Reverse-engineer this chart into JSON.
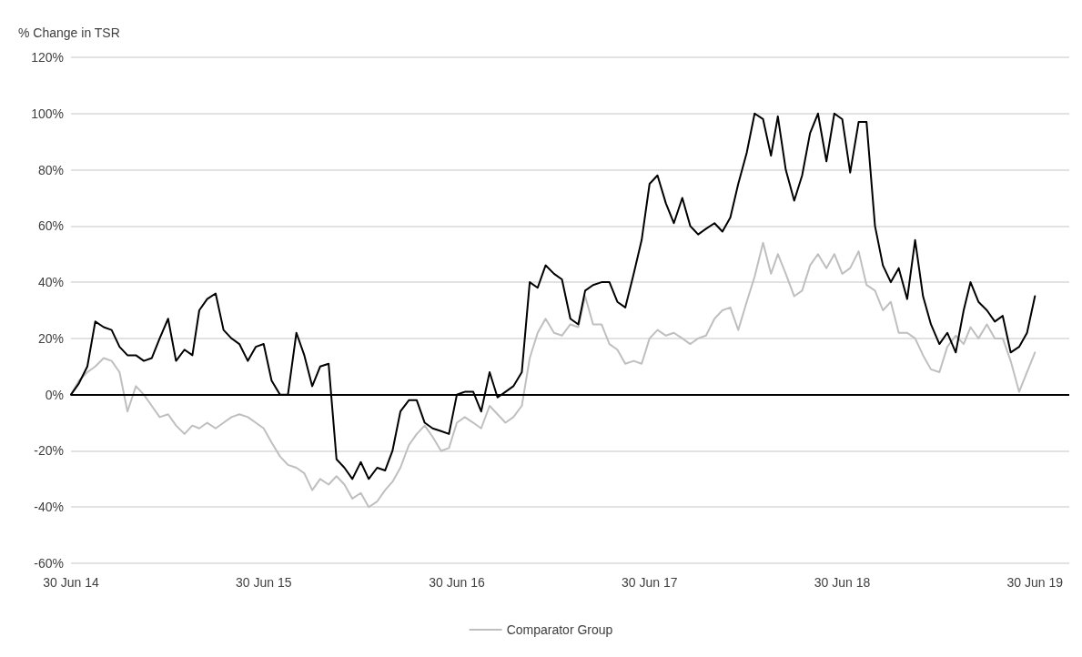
{
  "chart_data": {
    "type": "line",
    "ylabel": "% Change in TSR",
    "x": [
      "2014-06-30",
      "2014-07-15",
      "2014-07-31",
      "2014-08-15",
      "2014-08-31",
      "2014-09-15",
      "2014-09-30",
      "2014-10-15",
      "2014-10-31",
      "2014-11-15",
      "2014-11-30",
      "2014-12-15",
      "2014-12-31",
      "2015-01-15",
      "2015-01-31",
      "2015-02-15",
      "2015-02-28",
      "2015-03-15",
      "2015-03-31",
      "2015-04-15",
      "2015-04-30",
      "2015-05-15",
      "2015-05-31",
      "2015-06-15",
      "2015-06-30",
      "2015-07-15",
      "2015-07-31",
      "2015-08-15",
      "2015-08-31",
      "2015-09-15",
      "2015-09-30",
      "2015-10-15",
      "2015-10-31",
      "2015-11-15",
      "2015-11-30",
      "2015-12-15",
      "2015-12-31",
      "2016-01-15",
      "2016-01-31",
      "2016-02-15",
      "2016-02-29",
      "2016-03-15",
      "2016-03-31",
      "2016-04-15",
      "2016-04-30",
      "2016-05-15",
      "2016-05-31",
      "2016-06-15",
      "2016-06-30",
      "2016-07-15",
      "2016-07-31",
      "2016-08-15",
      "2016-08-31",
      "2016-09-15",
      "2016-09-30",
      "2016-10-15",
      "2016-10-31",
      "2016-11-15",
      "2016-11-30",
      "2016-12-15",
      "2016-12-31",
      "2017-01-15",
      "2017-01-31",
      "2017-02-15",
      "2017-02-28",
      "2017-03-15",
      "2017-03-31",
      "2017-04-15",
      "2017-04-30",
      "2017-05-15",
      "2017-05-31",
      "2017-06-15",
      "2017-06-30",
      "2017-07-15",
      "2017-07-31",
      "2017-08-15",
      "2017-08-31",
      "2017-09-15",
      "2017-09-30",
      "2017-10-15",
      "2017-10-31",
      "2017-11-15",
      "2017-11-30",
      "2017-12-15",
      "2017-12-31",
      "2018-01-15",
      "2018-01-31",
      "2018-02-15",
      "2018-02-28",
      "2018-03-15",
      "2018-03-31",
      "2018-04-15",
      "2018-04-30",
      "2018-05-15",
      "2018-05-31",
      "2018-06-15",
      "2018-06-30",
      "2018-07-15",
      "2018-07-31",
      "2018-08-15",
      "2018-08-31",
      "2018-09-15",
      "2018-09-30",
      "2018-10-15",
      "2018-10-31",
      "2018-11-15",
      "2018-11-30",
      "2018-12-15",
      "2018-12-31",
      "2019-01-15",
      "2019-01-31",
      "2019-02-15",
      "2019-02-28",
      "2019-03-15",
      "2019-03-31",
      "2019-04-15",
      "2019-04-30",
      "2019-05-15",
      "2019-05-31",
      "2019-06-15",
      "2019-06-30"
    ],
    "series": [
      {
        "name": "Comparator Group",
        "color": "#bfbfbf",
        "values": [
          0,
          5,
          8,
          10,
          13,
          12,
          8,
          -6,
          3,
          0,
          -4,
          -8,
          -7,
          -11,
          -14,
          -11,
          -12,
          -10,
          -12,
          -10,
          -8,
          -7,
          -8,
          -10,
          -12,
          -17,
          -22,
          -25,
          -26,
          -28,
          -34,
          -30,
          -32,
          -29,
          -32,
          -37,
          -35,
          -40,
          -38,
          -34,
          -31,
          -26,
          -18,
          -14,
          -11,
          -15,
          -20,
          -19,
          -10,
          -8,
          -10,
          -12,
          -4,
          -7,
          -10,
          -8,
          -4,
          13,
          22,
          27,
          22,
          21,
          25,
          24,
          35,
          25,
          25,
          18,
          16,
          11,
          12,
          11,
          20,
          23,
          21,
          22,
          20,
          18,
          20,
          21,
          27,
          30,
          31,
          23,
          33,
          42,
          54,
          43,
          50,
          43,
          35,
          37,
          46,
          50,
          45,
          50,
          43,
          45,
          51,
          39,
          37,
          30,
          33,
          22,
          22,
          20,
          14,
          9,
          8,
          17,
          21,
          18,
          24,
          20,
          25,
          20,
          20,
          12,
          1,
          8,
          15
        ]
      },
      {
        "color": "#000000",
        "values": [
          0,
          4,
          10,
          26,
          24,
          23,
          17,
          14,
          14,
          12,
          13,
          20,
          27,
          12,
          16,
          14,
          30,
          34,
          36,
          23,
          20,
          18,
          12,
          17,
          18,
          5,
          0,
          0,
          22,
          14,
          3,
          10,
          11,
          -23,
          -26,
          -30,
          -24,
          -30,
          -26,
          -27,
          -20,
          -6,
          -2,
          -2,
          -10,
          -12,
          -13,
          -14,
          0,
          1,
          1,
          -6,
          8,
          -1,
          1,
          3,
          8,
          40,
          38,
          46,
          43,
          41,
          27,
          25,
          37,
          39,
          40,
          40,
          33,
          31,
          43,
          55,
          75,
          78,
          68,
          61,
          70,
          60,
          57,
          59,
          61,
          58,
          63,
          75,
          86,
          100,
          98,
          85,
          99,
          80,
          69,
          78,
          93,
          100,
          83,
          100,
          98,
          79,
          97,
          97,
          60,
          46,
          40,
          45,
          34,
          55,
          35,
          25,
          18,
          22,
          15,
          30,
          40,
          33,
          30,
          26,
          28,
          15,
          17,
          22,
          35
        ]
      }
    ],
    "xlim": [
      "2014-06-30",
      "2019-09-03"
    ],
    "xticks": [
      {
        "value": "2014-06-30",
        "label": "30 Jun 14"
      },
      {
        "value": "2015-06-30",
        "label": "30 Jun 15"
      },
      {
        "value": "2016-06-30",
        "label": "30 Jun 16"
      },
      {
        "value": "2017-06-30",
        "label": "30 Jun 17"
      },
      {
        "value": "2018-06-30",
        "label": "30 Jun 18"
      },
      {
        "value": "2019-06-30",
        "label": "30 Jun 19"
      }
    ],
    "ylim": [
      -60,
      120
    ],
    "yticks": [
      {
        "value": -60,
        "label": "-60%"
      },
      {
        "value": -40,
        "label": "-40%"
      },
      {
        "value": -20,
        "label": "-20%"
      },
      {
        "value": 0,
        "label": "0%"
      },
      {
        "value": 20,
        "label": "20%"
      },
      {
        "value": 40,
        "label": "40%"
      },
      {
        "value": 60,
        "label": "60%"
      },
      {
        "value": 80,
        "label": "80%"
      },
      {
        "value": 100,
        "label": "100%"
      },
      {
        "value": 120,
        "label": "120%"
      }
    ],
    "ref_lines": [
      {
        "axis": "y",
        "value": 0,
        "color": "#000000"
      }
    ],
    "grid": "y",
    "legend": "bottom",
    "marker": "none",
    "line_style": "solid"
  }
}
